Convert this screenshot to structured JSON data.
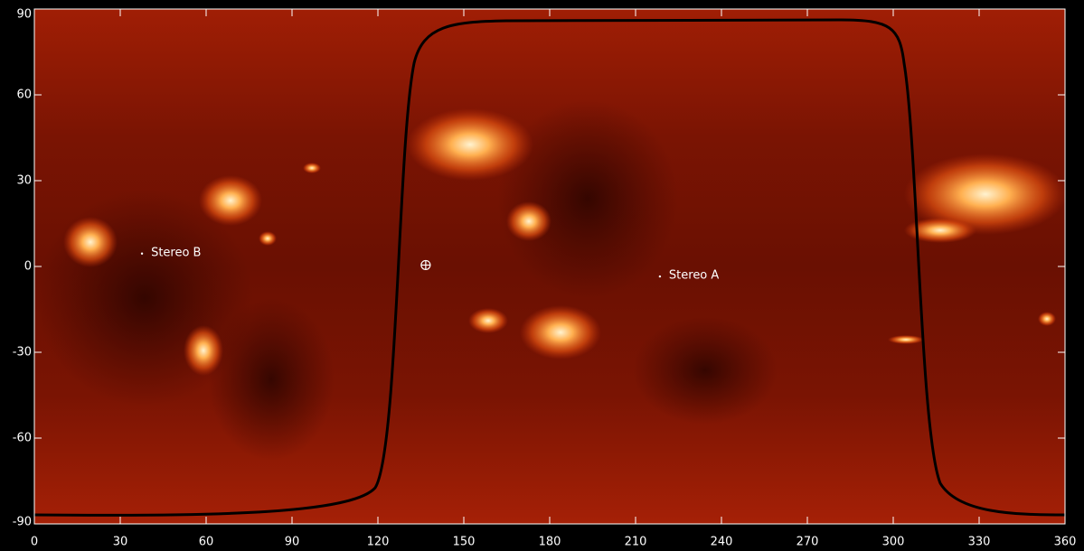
{
  "chart_data": {
    "type": "map",
    "xlim": [
      0,
      360
    ],
    "ylim": [
      -90,
      90
    ],
    "xticks": [
      0,
      30,
      60,
      90,
      120,
      150,
      180,
      210,
      240,
      270,
      300,
      330,
      360
    ],
    "yticks": [
      -90,
      -60,
      -30,
      0,
      30,
      60,
      90
    ],
    "markers": [
      {
        "label": "Stereo B",
        "lon": 37.6,
        "lat": 4.5
      },
      {
        "label": "Stereo A",
        "lon": 218.5,
        "lat": -3.5
      }
    ],
    "earth": {
      "lon": 136.7,
      "lat": 0.5
    }
  }
}
